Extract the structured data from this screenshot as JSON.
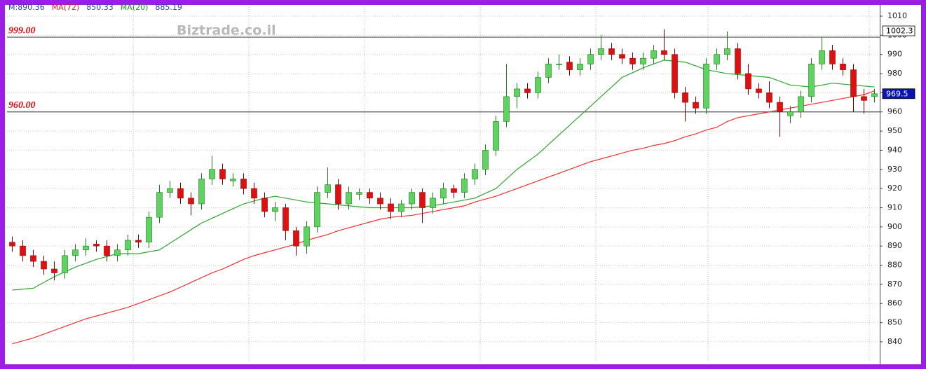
{
  "chart_data": {
    "type": "candlestick",
    "watermark": "Biztrade.co.il",
    "header": [
      {
        "text": "M:890.36",
        "color": "#2a3fa8"
      },
      {
        "text": "MA(72)",
        "color": "#e02020"
      },
      {
        "text": "850.33",
        "color": "#2a3fa8"
      },
      {
        "text": "MA(20)",
        "color": "#1f9a1f"
      },
      {
        "text": "885.19",
        "color": "#2a3fa8"
      }
    ],
    "up_color": "#5fd35f",
    "down_color": "#dd1111",
    "open": [
      892,
      890,
      885,
      882,
      878,
      876,
      885,
      888,
      891,
      890,
      885,
      888,
      893,
      892,
      905,
      918,
      920,
      915,
      912,
      925,
      930,
      924,
      925,
      920,
      915,
      908,
      910,
      898,
      890,
      900,
      918,
      922,
      912,
      917,
      918,
      915,
      912,
      908,
      912,
      918,
      910,
      915,
      920,
      918,
      925,
      930,
      940,
      955,
      968,
      972,
      970,
      978,
      985,
      986,
      982,
      985,
      990,
      993,
      990,
      988,
      985,
      988,
      992,
      990,
      970,
      965,
      962,
      985,
      990,
      993,
      980,
      972,
      970,
      965,
      958,
      960,
      968,
      985,
      992,
      985,
      982,
      968,
      968
    ],
    "high": [
      895,
      893,
      888,
      885,
      882,
      888,
      891,
      894,
      893,
      893,
      891,
      896,
      896,
      908,
      922,
      924,
      923,
      918,
      928,
      937,
      933,
      928,
      928,
      923,
      918,
      913,
      912,
      900,
      903,
      921,
      931,
      925,
      921,
      920,
      920,
      918,
      915,
      914,
      920,
      920,
      918,
      923,
      922,
      928,
      933,
      943,
      958,
      985,
      975,
      975,
      981,
      988,
      990,
      989,
      988,
      993,
      1000,
      996,
      993,
      991,
      991,
      995,
      1003,
      993,
      973,
      968,
      988,
      993,
      1002,
      996,
      985,
      975,
      976,
      968,
      963,
      971,
      988,
      999,
      995,
      988,
      985,
      972,
      972
    ],
    "low": [
      887,
      882,
      879,
      875,
      872,
      873,
      882,
      885,
      887,
      882,
      882,
      885,
      889,
      889,
      902,
      915,
      912,
      906,
      909,
      922,
      922,
      921,
      917,
      912,
      905,
      903,
      893,
      885,
      886,
      897,
      915,
      909,
      909,
      914,
      912,
      909,
      904,
      905,
      909,
      902,
      907,
      912,
      915,
      915,
      922,
      927,
      937,
      952,
      962,
      967,
      967,
      975,
      982,
      979,
      979,
      982,
      987,
      987,
      985,
      982,
      982,
      985,
      987,
      967,
      955,
      959,
      959,
      982,
      987,
      977,
      969,
      967,
      962,
      947,
      954,
      957,
      965,
      982,
      982,
      979,
      960,
      959,
      965
    ],
    "close": [
      890,
      885,
      882,
      878,
      876,
      885,
      888,
      890,
      890,
      885,
      888,
      893,
      892,
      905,
      918,
      920,
      915,
      912,
      925,
      930,
      925,
      925,
      920,
      915,
      908,
      910,
      898,
      890,
      900,
      918,
      922,
      912,
      918,
      918,
      915,
      912,
      908,
      912,
      918,
      910,
      915,
      920,
      918,
      925,
      930,
      940,
      955,
      968,
      972,
      970,
      978,
      985,
      985,
      982,
      985,
      990,
      993,
      990,
      988,
      985,
      988,
      992,
      990,
      970,
      965,
      962,
      985,
      990,
      993,
      980,
      972,
      970,
      965,
      960,
      960,
      968,
      985,
      992,
      985,
      982,
      968,
      966,
      969.5
    ],
    "series": [
      {
        "name": "MA(72)",
        "color": "#ee3030",
        "values": [
          839,
          840.5,
          842,
          844,
          846,
          848,
          850,
          852,
          853.5,
          855,
          856.5,
          858,
          860,
          862,
          864,
          866,
          868.5,
          871,
          873.5,
          876,
          878,
          880.5,
          883,
          885,
          886.5,
          888,
          889.5,
          891,
          893,
          894.5,
          896,
          898,
          899.5,
          901,
          902.5,
          904,
          905,
          905.5,
          906,
          907,
          908,
          909,
          910,
          911,
          913,
          914.5,
          916,
          918,
          920,
          922,
          924,
          926,
          928,
          930,
          932,
          934,
          935.5,
          937,
          938.5,
          940,
          941,
          942.5,
          943.5,
          945,
          947,
          948.5,
          950.5,
          952,
          955,
          957,
          958,
          959,
          960,
          961,
          962,
          963,
          964,
          965,
          966,
          967,
          968,
          969,
          971
        ]
      },
      {
        "name": "MA(20)",
        "color": "#2ea52e",
        "values": [
          867,
          867.5,
          868,
          871,
          874,
          876.5,
          879,
          881,
          883,
          884.5,
          886,
          886,
          886,
          887,
          888,
          891.5,
          895,
          898.5,
          902,
          904.5,
          907,
          909.5,
          912,
          913.5,
          915,
          916,
          915,
          914,
          913,
          912.5,
          912,
          911.5,
          911,
          910.5,
          910,
          910,
          910,
          910,
          910,
          910.5,
          911,
          912,
          913,
          914,
          915,
          917.5,
          920,
          925,
          930,
          934,
          938,
          943,
          948,
          953,
          958,
          963,
          968,
          973,
          978,
          980.5,
          983,
          985,
          987,
          986.5,
          986,
          984,
          982,
          981,
          980,
          979.5,
          979,
          978.5,
          978,
          976,
          974,
          973.5,
          973,
          974,
          975,
          974.5,
          974,
          973.5,
          973
        ]
      }
    ],
    "levels": [
      {
        "value": 999,
        "label": "999.00"
      },
      {
        "value": 960,
        "label": "960.00"
      }
    ],
    "price_boxes": [
      {
        "value": 1002.3,
        "background": "#ffffff",
        "text_color": "#000000"
      },
      {
        "value": 969.5,
        "background": "#0a14b4",
        "text_color": "#ffffff"
      }
    ],
    "ylim": [
      831.2,
      1014.75
    ],
    "yticks": [
      840,
      850,
      860,
      870,
      880,
      890,
      900,
      910,
      920,
      930,
      940,
      950,
      960,
      970,
      980,
      990,
      1000,
      1010
    ],
    "grid": true
  }
}
